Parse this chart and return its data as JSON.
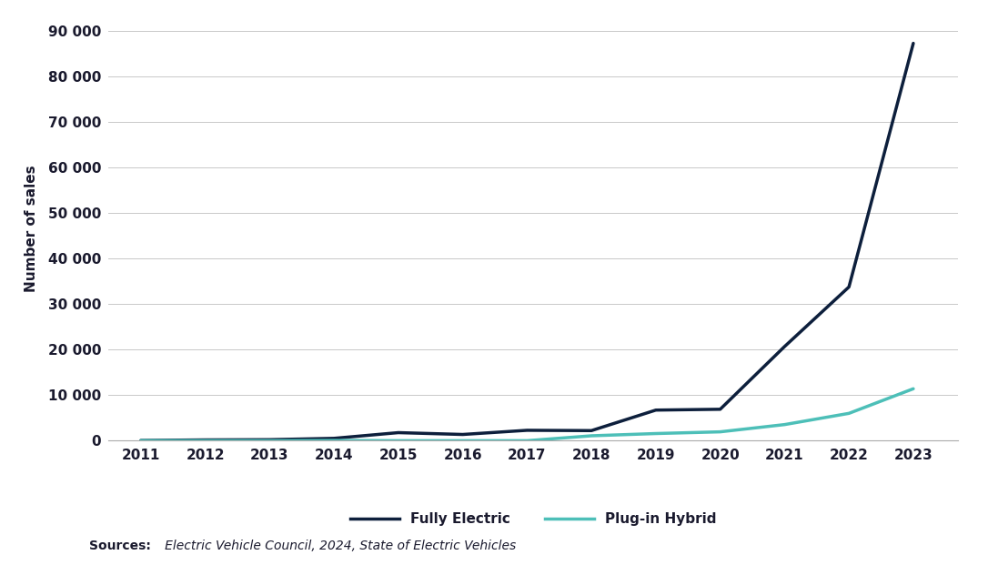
{
  "years": [
    2011,
    2012,
    2013,
    2014,
    2015,
    2016,
    2017,
    2018,
    2019,
    2020,
    2021,
    2022,
    2023
  ],
  "fully_electric": [
    49,
    177,
    228,
    518,
    1771,
    1369,
    2284,
    2216,
    6718,
    6900,
    20665,
    33739,
    87217
  ],
  "plug_in_hybrid": [
    0,
    0,
    0,
    49,
    0,
    0,
    0,
    1080,
    1571,
    1947,
    3538,
    6000,
    11400
  ],
  "fully_electric_color": "#0d1f3c",
  "plug_in_hybrid_color": "#4dbfb8",
  "line_width": 2.5,
  "ylabel": "Number of sales",
  "ylim": [
    0,
    93000
  ],
  "yticks": [
    0,
    10000,
    20000,
    30000,
    40000,
    50000,
    60000,
    70000,
    80000,
    90000
  ],
  "ytick_labels": [
    "0",
    "10 000",
    "20 000",
    "30 000",
    "40 000",
    "50 000",
    "60 000",
    "70 000",
    "80 000",
    "90 000"
  ],
  "legend_labels": [
    "Fully Electric",
    "Plug-in Hybrid"
  ],
  "source_label": "Sources:",
  "source_body": "   Electric Vehicle Council, 2024, State of Electric Vehicles",
  "background_color": "#ffffff",
  "grid_color": "#c8c8c8",
  "tick_label_color": "#1a1a2e",
  "ylabel_color": "#1a1a2e",
  "source_color": "#1a1a2e"
}
